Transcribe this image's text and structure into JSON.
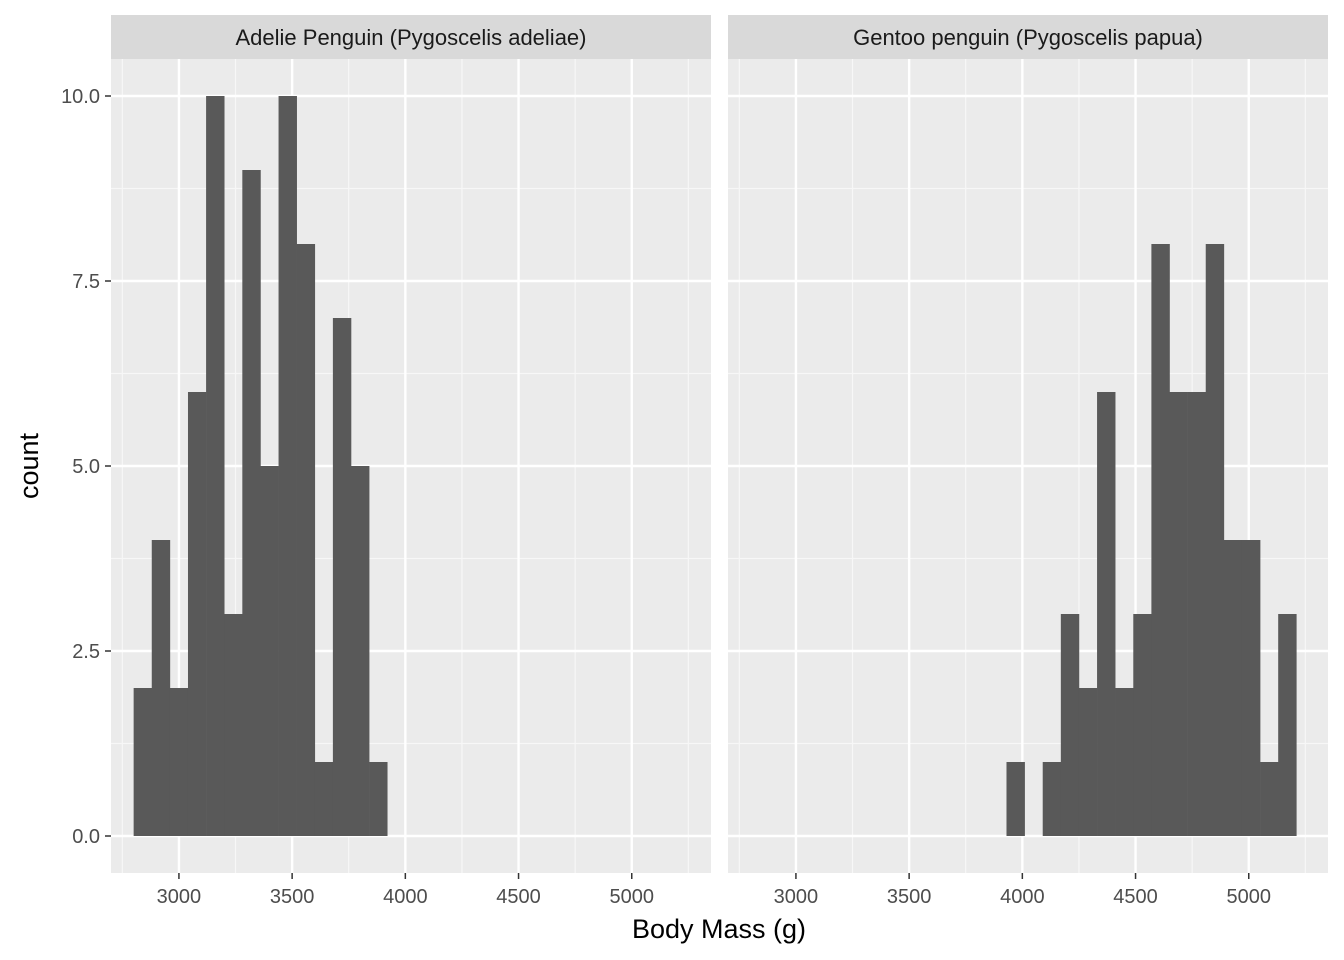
{
  "chart_data": {
    "type": "bar",
    "xlabel": "Body Mass (g)",
    "ylabel": "count",
    "xlim": [
      2700,
      5350
    ],
    "ylim": [
      -0.5,
      10.5
    ],
    "x_ticks": [
      3000,
      3500,
      4000,
      4500,
      5000
    ],
    "y_ticks": [
      0.0,
      2.5,
      5.0,
      7.5,
      10.0
    ],
    "y_tick_labels": [
      "0.0",
      "2.5",
      "5.0",
      "7.5",
      "10.0"
    ],
    "grid": true,
    "bin_width": 80,
    "colors": {
      "bar": "#595959",
      "panel": "#ebebeb",
      "strip": "#d9d9d9",
      "grid_major": "#ffffff",
      "grid_minor": "#f7f7f7",
      "tick": "#333333"
    },
    "panels": [
      {
        "name": "Adelie Penguin (Pygoscelis adeliae)",
        "bins": [
          {
            "x0": 2800,
            "count": 2
          },
          {
            "x0": 2880,
            "count": 4
          },
          {
            "x0": 2960,
            "count": 2
          },
          {
            "x0": 3040,
            "count": 6
          },
          {
            "x0": 3120,
            "count": 10
          },
          {
            "x0": 3200,
            "count": 3
          },
          {
            "x0": 3280,
            "count": 9
          },
          {
            "x0": 3360,
            "count": 5
          },
          {
            "x0": 3440,
            "count": 10
          },
          {
            "x0": 3520,
            "count": 8
          },
          {
            "x0": 3600,
            "count": 1
          },
          {
            "x0": 3680,
            "count": 7
          },
          {
            "x0": 3760,
            "count": 5
          },
          {
            "x0": 3840,
            "count": 1
          }
        ]
      },
      {
        "name": "Gentoo penguin (Pygoscelis papua)",
        "bins": [
          {
            "x0": 3930,
            "count": 1
          },
          {
            "x0": 4090,
            "count": 1
          },
          {
            "x0": 4170,
            "count": 3
          },
          {
            "x0": 4250,
            "count": 2
          },
          {
            "x0": 4330,
            "count": 6
          },
          {
            "x0": 4410,
            "count": 2
          },
          {
            "x0": 4490,
            "count": 3
          },
          {
            "x0": 4570,
            "count": 8
          },
          {
            "x0": 4650,
            "count": 6
          },
          {
            "x0": 4730,
            "count": 6
          },
          {
            "x0": 4810,
            "count": 8
          },
          {
            "x0": 4890,
            "count": 4
          },
          {
            "x0": 4970,
            "count": 4
          },
          {
            "x0": 5050,
            "count": 1
          },
          {
            "x0": 5130,
            "count": 3
          }
        ]
      }
    ]
  }
}
